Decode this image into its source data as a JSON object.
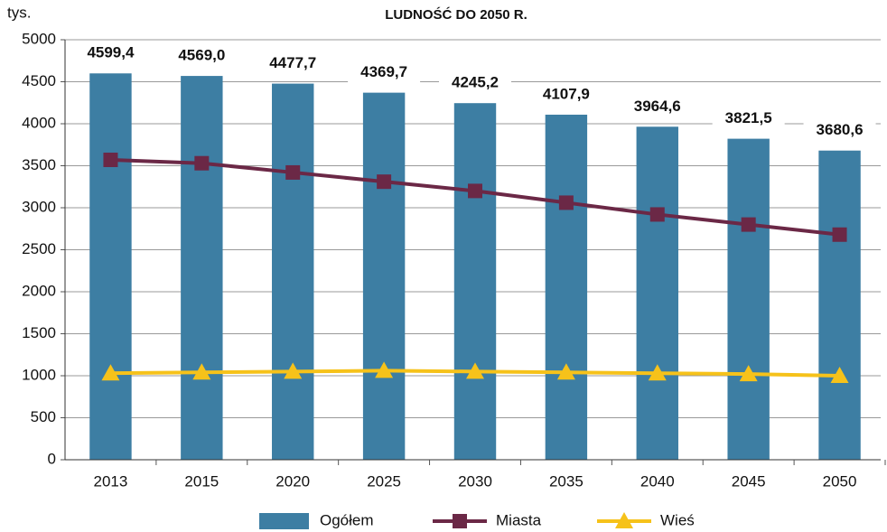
{
  "chart_data": {
    "type": "bar",
    "title": "LUDNOŚĆ  DO  2050  R.",
    "y_label": "tys.",
    "categories": [
      "2013",
      "2015",
      "2020",
      "2025",
      "2030",
      "2035",
      "2040",
      "2045",
      "2050"
    ],
    "series": [
      {
        "name": "Ogółem",
        "type": "bar",
        "color": "#3d7ea3",
        "values": [
          4599.4,
          4569.0,
          4477.7,
          4369.7,
          4245.2,
          4107.9,
          3964.6,
          3821.5,
          3680.6
        ],
        "value_labels": [
          "4599,4",
          "4569,0",
          "4477,7",
          "4369,7",
          "4245,2",
          "4107,9",
          "3964,6",
          "3821,5",
          "3680,6"
        ]
      },
      {
        "name": "Miasta",
        "type": "line",
        "marker": "square",
        "color": "#6b2846",
        "values": [
          3570,
          3530,
          3420,
          3310,
          3200,
          3060,
          2920,
          2800,
          2680
        ]
      },
      {
        "name": "Wieś",
        "type": "line",
        "marker": "triangle",
        "color": "#f6c21a",
        "values": [
          1030,
          1040,
          1050,
          1060,
          1050,
          1040,
          1030,
          1020,
          1000
        ]
      }
    ],
    "ylim": [
      0,
      5000
    ],
    "yticks": [
      0,
      500,
      1000,
      1500,
      2000,
      2500,
      3000,
      3500,
      4000,
      4500,
      5000
    ],
    "grid": true,
    "legend": "bottom"
  }
}
